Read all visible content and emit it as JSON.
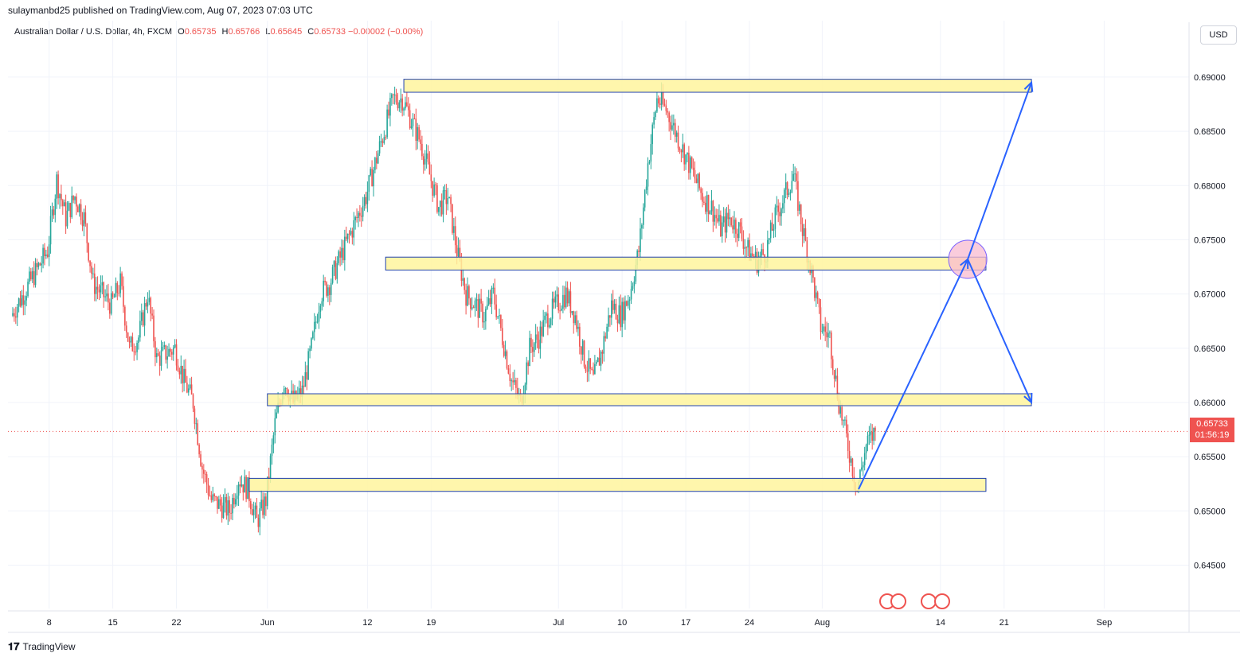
{
  "header": {
    "published": "sulaymanbd25 published on TradingView.com, Aug 07, 2023 07:03 UTC"
  },
  "symbol": {
    "name": "Australian Dollar / U.S. Dollar, 4h, FXCM",
    "open_label": "O",
    "open": "0.65735",
    "high_label": "H",
    "high": "0.65766",
    "low_label": "L",
    "low": "0.65645",
    "close_label": "C",
    "close": "0.65733",
    "change": "−0.00002 (−0.00%)"
  },
  "currency": "USD",
  "last_price": {
    "price": "0.65733",
    "countdown": "01:56:19"
  },
  "footer": {
    "brand": "TradingView"
  },
  "colors": {
    "up": "#26a69a",
    "down": "#ef5350",
    "zone_fill": "#fff59d",
    "zone_border": "#1e40af",
    "arrow": "#2962ff",
    "circle": "#f8bbd0"
  },
  "chart_data": {
    "type": "candlestick",
    "timeframe": "4h",
    "y_axis": {
      "ticks": [
        "0.69000",
        "0.68500",
        "0.68000",
        "0.67500",
        "0.67000",
        "0.66500",
        "0.66000",
        "0.65500",
        "0.65000",
        "0.64500"
      ],
      "range": [
        0.641,
        0.693
      ]
    },
    "x_axis": {
      "ticks": [
        "8",
        "15",
        "22",
        "Jun",
        "12",
        "19",
        "Jul",
        "10",
        "17",
        "24",
        "Aug",
        "14",
        "21",
        "Sep"
      ]
    },
    "price_path": [
      [
        "May 4",
        0.668
      ],
      [
        "May 8",
        0.674
      ],
      [
        "May 9",
        0.6805
      ],
      [
        "May 10",
        0.677
      ],
      [
        "May 11",
        0.679
      ],
      [
        "May 12",
        0.677
      ],
      [
        "May 13",
        0.671
      ],
      [
        "May 15",
        0.669
      ],
      [
        "May 16",
        0.671
      ],
      [
        "May 17",
        0.665
      ],
      [
        "May 18",
        0.666
      ],
      [
        "May 19",
        0.67
      ],
      [
        "May 20",
        0.664
      ],
      [
        "May 22",
        0.665
      ],
      [
        "May 23",
        0.662
      ],
      [
        "May 24",
        0.66
      ],
      [
        "May 25",
        0.654
      ],
      [
        "May 26",
        0.651
      ],
      [
        "May 28",
        0.65
      ],
      [
        "May 29",
        0.653
      ],
      [
        "May 30",
        0.652
      ],
      [
        "May 31",
        0.649
      ],
      [
        "Jun 1",
        0.651
      ],
      [
        "Jun 2",
        0.658
      ],
      [
        "Jun 3",
        0.662
      ],
      [
        "Jun 4",
        0.66
      ],
      [
        "Jun 5",
        0.661
      ],
      [
        "Jun 6",
        0.665
      ],
      [
        "Jun 7",
        0.67
      ],
      [
        "Jun 8",
        0.671
      ],
      [
        "Jun 9",
        0.673
      ],
      [
        "Jun 10",
        0.675
      ],
      [
        "Jun 11",
        0.677
      ],
      [
        "Jun 12",
        0.679
      ],
      [
        "Jun 13",
        0.682
      ],
      [
        "Jun 14",
        0.685
      ],
      [
        "Jun 15",
        0.688
      ],
      [
        "Jun 16",
        0.688
      ],
      [
        "Jun 17",
        0.686
      ],
      [
        "Jun 18",
        0.684
      ],
      [
        "Jun 19",
        0.681
      ],
      [
        "Jun 20",
        0.678
      ],
      [
        "Jun 21",
        0.679
      ],
      [
        "Jun 22",
        0.674
      ],
      [
        "Jun 23",
        0.67
      ],
      [
        "Jun 24",
        0.669
      ],
      [
        "Jun 25",
        0.668
      ],
      [
        "Jun 26",
        0.67
      ],
      [
        "Jun 27",
        0.666
      ],
      [
        "Jun 28",
        0.662
      ],
      [
        "Jun 29",
        0.66
      ],
      [
        "Jun 30",
        0.665
      ],
      [
        "Jul 1",
        0.666
      ],
      [
        "Jul 2",
        0.668
      ],
      [
        "Jul 3",
        0.669
      ],
      [
        "Jul 4",
        0.67
      ],
      [
        "Jul 5",
        0.668
      ],
      [
        "Jul 6",
        0.664
      ],
      [
        "Jul 7",
        0.662
      ],
      [
        "Jul 8",
        0.665
      ],
      [
        "Jul 9",
        0.669
      ],
      [
        "Jul 10",
        0.668
      ],
      [
        "Jul 11",
        0.67
      ],
      [
        "Jul 12",
        0.674
      ],
      [
        "Jul 13",
        0.682
      ],
      [
        "Jul 14",
        0.688
      ],
      [
        "Jul 15",
        0.687
      ],
      [
        "Jul 16",
        0.685
      ],
      [
        "Jul 17",
        0.683
      ],
      [
        "Jul 18",
        0.681
      ],
      [
        "Jul 19",
        0.679
      ],
      [
        "Jul 20",
        0.678
      ],
      [
        "Jul 21",
        0.676
      ],
      [
        "Jul 22",
        0.677
      ],
      [
        "Jul 23",
        0.676
      ],
      [
        "Jul 24",
        0.674
      ],
      [
        "Jul 25",
        0.673
      ],
      [
        "Jul 26",
        0.674
      ],
      [
        "Jul 27",
        0.677
      ],
      [
        "Jul 28",
        0.679
      ],
      [
        "Jul 29",
        0.681
      ],
      [
        "Jul 30",
        0.676
      ],
      [
        "Jul 31",
        0.672
      ],
      [
        "Aug 1",
        0.667
      ],
      [
        "Aug 2",
        0.666
      ],
      [
        "Aug 3",
        0.66
      ],
      [
        "Aug 4",
        0.656
      ],
      [
        "Aug 5",
        0.652
      ],
      [
        "Aug 6",
        0.656
      ],
      [
        "Aug 7",
        0.6573
      ]
    ],
    "zones": [
      {
        "low": 0.6886,
        "high": 0.6898,
        "from": "Jun 16",
        "to": "Aug 24"
      },
      {
        "low": 0.6722,
        "high": 0.6734,
        "from": "Jun 14",
        "to": "Aug 19"
      },
      {
        "low": 0.6597,
        "high": 0.6608,
        "from": "Jun 1",
        "to": "Aug 24"
      },
      {
        "low": 0.6518,
        "high": 0.653,
        "from": "May 30",
        "to": "Aug 19"
      }
    ],
    "projection": [
      {
        "from": [
          "Aug 5",
          0.652
        ],
        "to": [
          "Aug 17",
          0.6732
        ]
      },
      {
        "from": [
          "Aug 17",
          0.6732
        ],
        "to": [
          "Aug 24",
          0.66
        ]
      },
      {
        "from": [
          "Aug 17",
          0.6732
        ],
        "to": [
          "Aug 24",
          0.6895
        ]
      }
    ],
    "current_price": 0.65733,
    "grid": true
  }
}
